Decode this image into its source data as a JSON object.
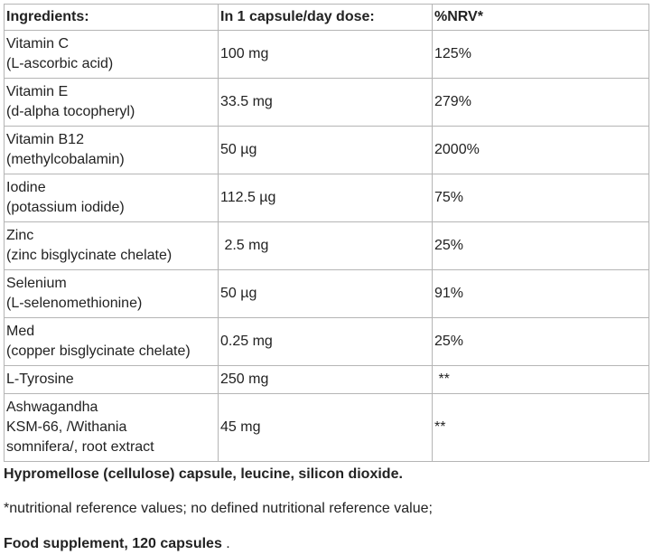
{
  "table": {
    "header": [
      "Ingredients:",
      "In 1 capsule/day dose:",
      "%NRV*"
    ],
    "rows": [
      [
        [
          "Vitamin C",
          "(L-ascorbic acid)"
        ],
        "100 mg",
        "125%"
      ],
      [
        [
          "Vitamin E",
          "(d-alpha tocopheryl)"
        ],
        "33.5 mg",
        "279%"
      ],
      [
        [
          "Vitamin B12",
          "(methylcobalamin)"
        ],
        "50 µg",
        "2000%"
      ],
      [
        [
          "Iodine",
          "(potassium iodide)"
        ],
        "112.5 µg",
        "75%"
      ],
      [
        [
          "Zinc",
          "(zinc bisglycinate chelate)"
        ],
        " 2.5 mg",
        "25%"
      ],
      [
        [
          "Selenium",
          "(L-selenomethionine)"
        ],
        "50 µg",
        "91%"
      ],
      [
        [
          "Med",
          "(copper bisglycinate chelate)"
        ],
        "0.25 mg",
        "25%"
      ],
      [
        [
          "L-Tyrosine"
        ],
        "250 mg",
        " **"
      ],
      [
        [
          "Ashwagandha",
          "KSM-66, /Withania",
          "somnifera/, root extract"
        ],
        "45 mg",
        "**"
      ]
    ]
  },
  "footer": {
    "composition": "Hypromellose (cellulose) capsule, leucine, silicon dioxide.",
    "note": "*nutritional reference values; no defined nutritional reference value;",
    "product": "Food supplement, 120 capsules",
    "product_end": " ."
  }
}
